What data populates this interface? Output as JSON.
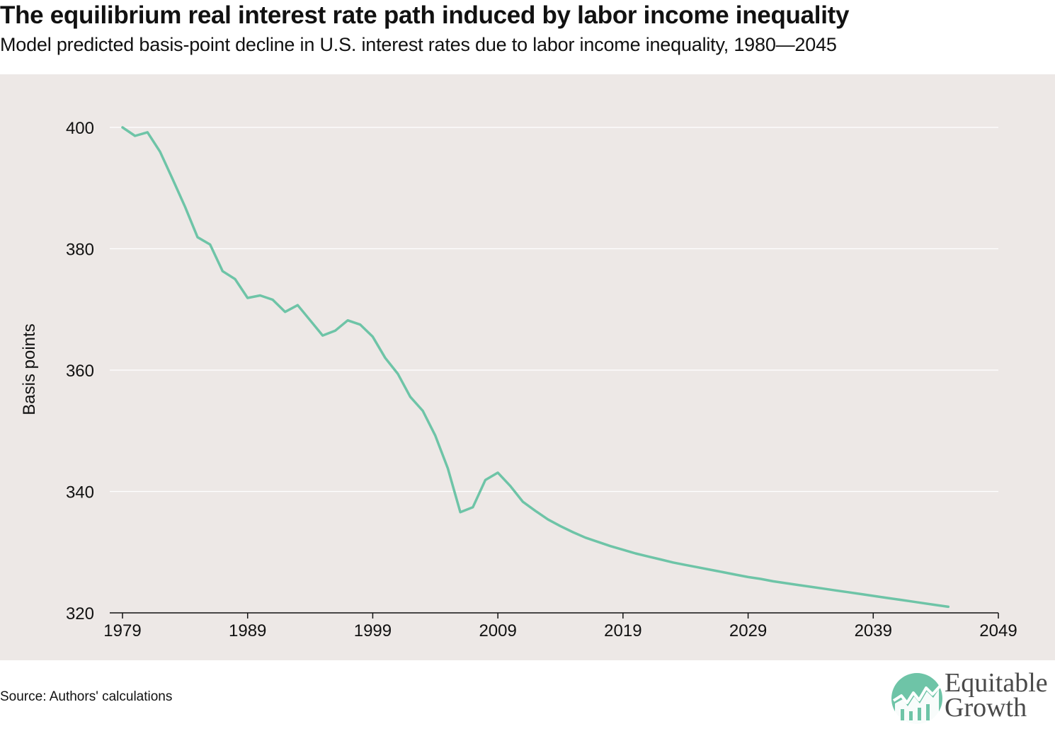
{
  "header": {
    "title": "The equilibrium real interest rate path induced by labor income inequality",
    "subtitle": "Model predicted basis-point decline in U.S. interest rates due to labor income inequality, 1980—2045"
  },
  "footer": {
    "source": "Source: Authors' calculations",
    "logo_line1": "Equitable",
    "logo_line2": "Growth"
  },
  "colors": {
    "line": "#6ec4a7",
    "panel_background": "#ede8e6",
    "grid": "#ffffff",
    "logo_circle": "#6ec4a7",
    "logo_text": "#4a4a4a"
  },
  "chart_data": {
    "type": "line",
    "title": "The equilibrium real interest rate path induced by labor income inequality",
    "subtitle": "Model predicted basis-point decline in U.S. interest rates due to labor income inequality, 1980—2045",
    "xlabel": "",
    "ylabel": "Basis points",
    "xlim": [
      1979,
      2049
    ],
    "ylim": [
      320,
      400
    ],
    "xticks": [
      1979,
      1989,
      1999,
      2009,
      2019,
      2029,
      2039,
      2049
    ],
    "yticks": [
      320,
      340,
      360,
      380,
      400
    ],
    "grid": "horizontal",
    "legend": "none",
    "series": [
      {
        "x": [
          1979,
          1980,
          1981,
          1982,
          1983,
          1984,
          1985,
          1986,
          1987,
          1988,
          1989,
          1990,
          1991,
          1992,
          1993,
          1994,
          1995,
          1996,
          1997,
          1998,
          1999,
          2000,
          2001,
          2002,
          2003,
          2004,
          2005,
          2006,
          2007,
          2008,
          2009,
          2010,
          2011,
          2012,
          2013,
          2014,
          2015,
          2016,
          2017,
          2018,
          2019,
          2020,
          2021,
          2022,
          2023,
          2024,
          2025,
          2026,
          2027,
          2028,
          2029,
          2030,
          2031,
          2032,
          2033,
          2034,
          2035,
          2036,
          2037,
          2038,
          2039,
          2040,
          2041,
          2042,
          2043,
          2044,
          2045
        ],
        "values": [
          400.0,
          398.6,
          399.2,
          396.0,
          391.5,
          386.9,
          381.9,
          380.7,
          376.3,
          375.0,
          371.9,
          372.3,
          371.6,
          369.6,
          370.7,
          368.2,
          365.7,
          366.5,
          368.2,
          367.5,
          365.5,
          362.0,
          359.4,
          355.6,
          353.3,
          349.2,
          343.8,
          336.6,
          337.4,
          341.9,
          343.1,
          340.9,
          338.3,
          336.8,
          335.4,
          334.3,
          333.3,
          332.4,
          331.7,
          331.0,
          330.4,
          329.8,
          329.3,
          328.8,
          328.3,
          327.9,
          327.5,
          327.1,
          326.7,
          326.3,
          325.9,
          325.6,
          325.2,
          324.9,
          324.6,
          324.3,
          324.0,
          323.7,
          323.4,
          323.1,
          322.8,
          322.5,
          322.2,
          321.9,
          321.6,
          321.3,
          321.0
        ]
      }
    ]
  }
}
